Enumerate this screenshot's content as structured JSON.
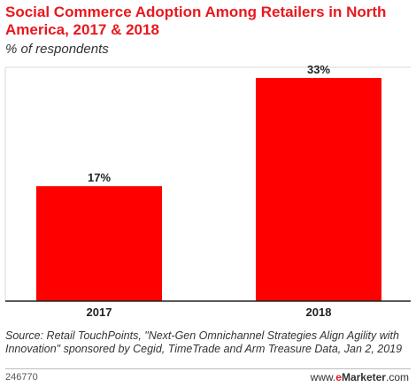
{
  "title": "Social Commerce Adoption Among Retailers in North America, 2017 & 2018",
  "subtitle": "% of respondents",
  "source": "Source: Retail TouchPoints, \"Next-Gen Omnichannel Strategies Align Agility with Innovation\" sponsored by Cegid, TimeTrade and Arm Treasure Data, Jan 2, 2019",
  "footer": {
    "code": "246770",
    "brand_prefix": "www.",
    "brand_e": "e",
    "brand_main": "Marketer",
    "brand_suffix": ".com"
  },
  "chart_data": {
    "type": "bar",
    "categories": [
      "2017",
      "2018"
    ],
    "values": [
      17,
      33
    ],
    "value_labels": [
      "17%",
      "33%"
    ],
    "title": "Social Commerce Adoption Among Retailers in North America, 2017 & 2018",
    "subtitle": "% of respondents",
    "xlabel": "",
    "ylabel": "",
    "ylim": [
      0,
      35
    ],
    "grid": false,
    "legend": "none",
    "bar_color": "#ff0000"
  }
}
